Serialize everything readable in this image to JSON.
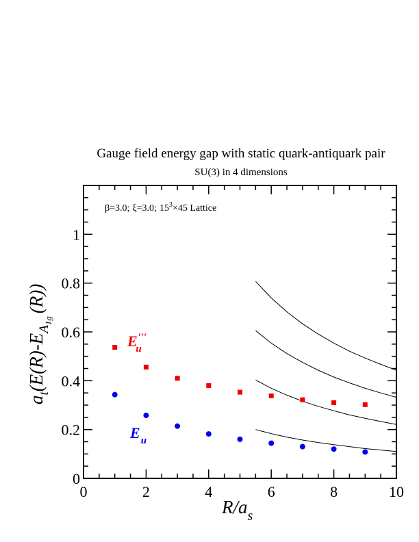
{
  "chart_data": {
    "type": "scatter",
    "title": "Gauge field energy gap with static quark-antiquark pair",
    "subtitle": "SU(3) in 4 dimensions",
    "annotation": {
      "beta": "β=3.0;",
      "xi": "ξ=3.0;",
      "lattice_prefix": "15",
      "lattice_exp": "3",
      "lattice_suffix": "×45 Lattice"
    },
    "xlabel": {
      "main": "R/a",
      "sub": "s"
    },
    "ylabel": {
      "a": "a",
      "t": "t",
      "mid": "(E(R)-E",
      "A": "A",
      "sub1": "1",
      "sub2": "g",
      "end": "(R))"
    },
    "xlim": [
      0,
      10
    ],
    "ylim": [
      0,
      1.2
    ],
    "xticks": [
      0,
      2,
      4,
      6,
      8,
      10
    ],
    "xtick_labels": [
      "0",
      "2",
      "4",
      "6",
      "8",
      "10"
    ],
    "yticks": [
      0,
      0.2,
      0.4,
      0.6,
      0.8,
      1
    ],
    "ytick_labels": [
      "0",
      "0.2",
      "0.4",
      "0.6",
      "0.8",
      "1"
    ],
    "grid": false,
    "series": [
      {
        "label_main": "E",
        "label_sub": "u",
        "label_sup": "′′′",
        "marker": "square",
        "color": "#ee0000",
        "x": [
          1,
          2,
          3,
          4,
          5,
          6,
          7,
          8,
          9
        ],
        "y": [
          0.537,
          0.456,
          0.41,
          0.38,
          0.353,
          0.338,
          0.322,
          0.31,
          0.302
        ]
      },
      {
        "label_main": "E",
        "label_sub": "u",
        "marker": "circle",
        "color": "#0000ee",
        "x": [
          1,
          2,
          3,
          4,
          5,
          6,
          7,
          8,
          9
        ],
        "y": [
          0.343,
          0.258,
          0.214,
          0.182,
          0.16,
          0.144,
          0.13,
          0.12,
          0.108
        ]
      }
    ],
    "curves": [
      {
        "x": [
          5.5,
          6,
          6.5,
          7,
          7.5,
          8,
          8.5,
          9,
          9.5,
          10
        ],
        "y": [
          0.2,
          0.183,
          0.169,
          0.157,
          0.147,
          0.138,
          0.13,
          0.122,
          0.116,
          0.11
        ]
      },
      {
        "x": [
          5.5,
          6,
          6.5,
          7,
          7.5,
          8,
          8.5,
          9,
          9.5,
          10
        ],
        "y": [
          0.403,
          0.369,
          0.341,
          0.316,
          0.295,
          0.277,
          0.26,
          0.246,
          0.233,
          0.221
        ]
      },
      {
        "x": [
          5.5,
          6,
          6.5,
          7,
          7.5,
          8,
          8.5,
          9,
          9.5,
          10
        ],
        "y": [
          0.605,
          0.554,
          0.511,
          0.475,
          0.443,
          0.415,
          0.391,
          0.369,
          0.35,
          0.332
        ]
      },
      {
        "x": [
          5.5,
          6,
          6.5,
          7,
          7.5,
          8,
          8.5,
          9,
          9.5,
          10
        ],
        "y": [
          0.807,
          0.739,
          0.682,
          0.633,
          0.591,
          0.554,
          0.521,
          0.493,
          0.467,
          0.443
        ]
      }
    ]
  }
}
